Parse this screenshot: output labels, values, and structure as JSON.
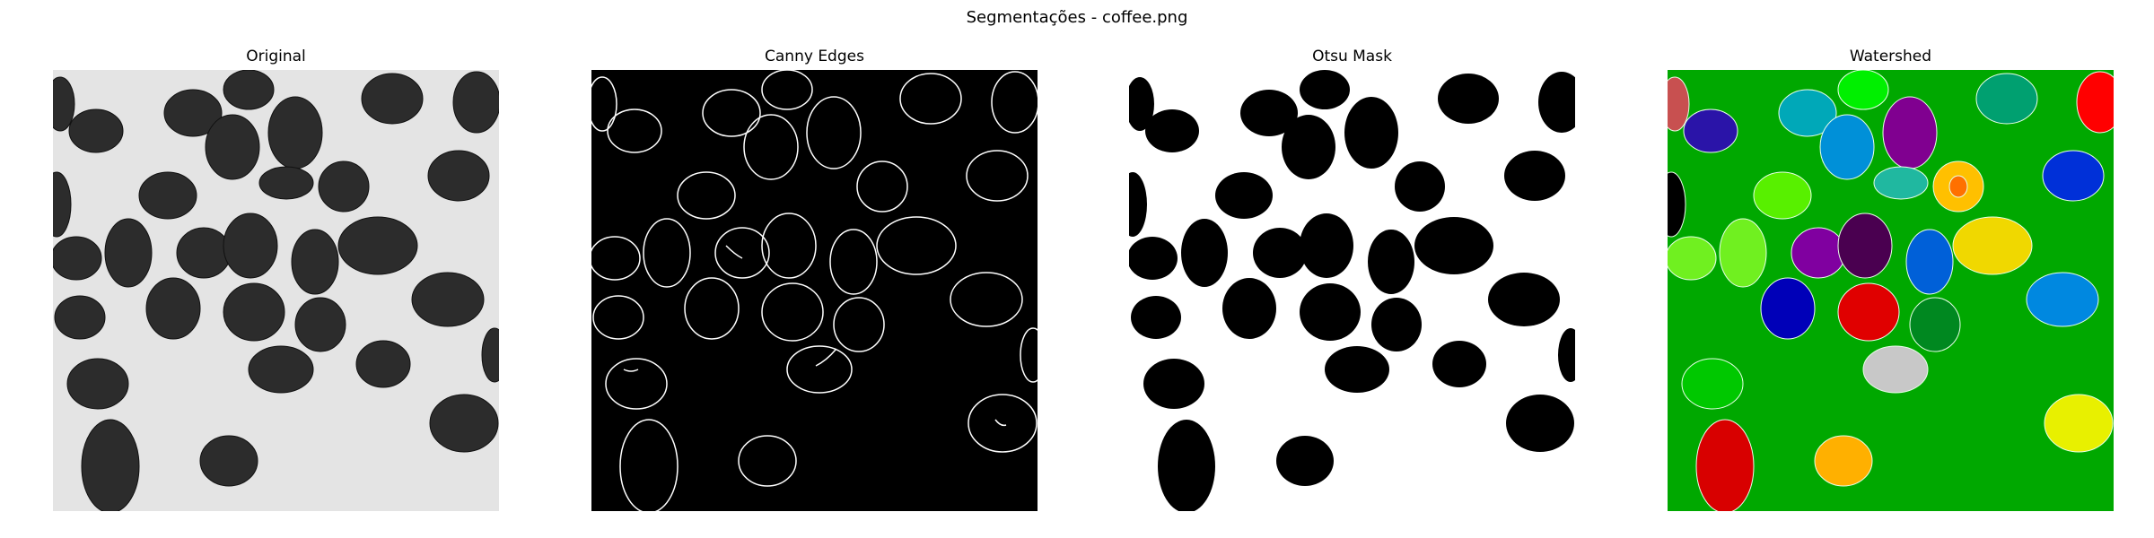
{
  "figure": {
    "suptitle": "Segmentações - coffee.png",
    "panels": [
      {
        "title": "Original"
      },
      {
        "title": "Canny Edges"
      },
      {
        "title": "Otsu Mask"
      },
      {
        "title": "Watershed"
      }
    ]
  },
  "colors": {
    "original_bg": "#e4e4e4",
    "bean_dark": "#2c2c2c",
    "edges_bg": "#000000",
    "edges_line": "#ffffff",
    "mask_bg": "#ffffff",
    "mask_fg": "#000000",
    "watershed_bg": "#00a800",
    "watershed_labels": [
      "#c85050",
      "#2a14a8",
      "#00a8b8",
      "#00f000",
      "#800090",
      "#00a070",
      "#ff0000",
      "#000000",
      "#58f000",
      "#0090d8",
      "#20b8a0",
      "#ffc000",
      "#f0d800",
      "#0030d8",
      "#70f020",
      "#8000a0",
      "#4a0050",
      "#0060d8",
      "#0000b8",
      "#e00000",
      "#008820",
      "#0088e0",
      "#00c800",
      "#c8c8c8",
      "#d80000",
      "#ffb000",
      "#e8f000"
    ]
  }
}
